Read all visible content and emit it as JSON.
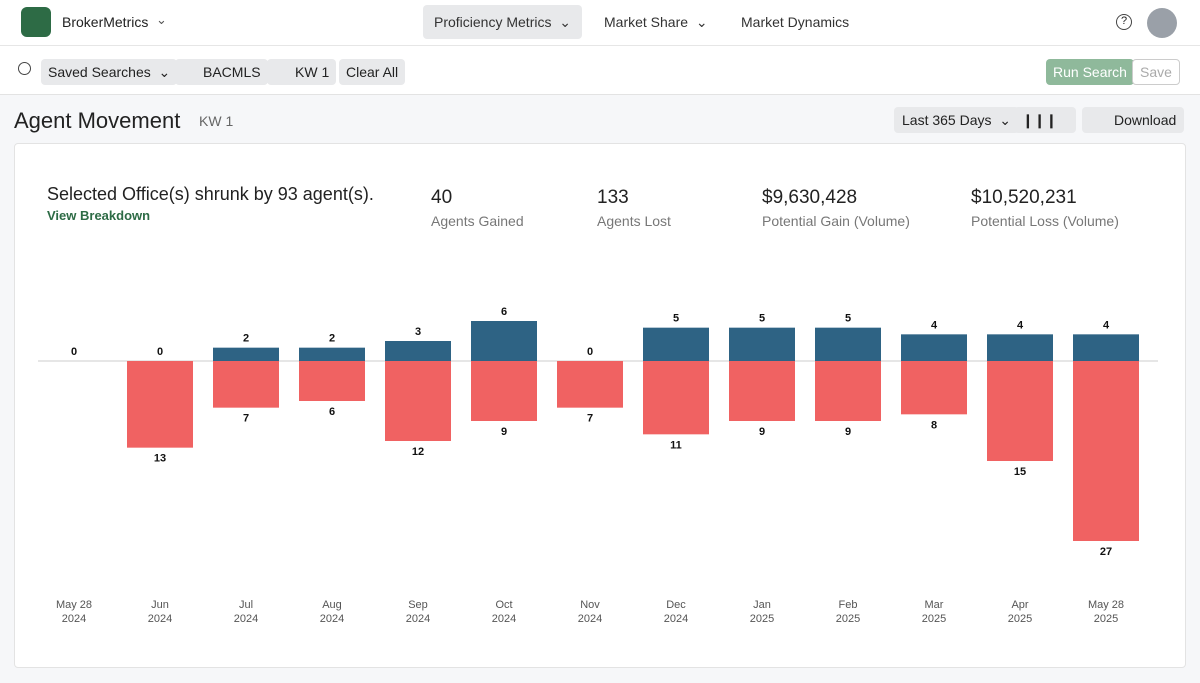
{
  "nav": {
    "brand": "BrokerMetrics",
    "tabs": [
      "Proficiency Metrics",
      "Market Share",
      "Market Dynamics"
    ]
  },
  "toolbar": {
    "saved": "Saved Searches",
    "chips": [
      "BACMLS",
      "KW 1"
    ],
    "clear": "Clear All",
    "run": "Run Search",
    "save": "Save"
  },
  "header": {
    "title": "Agent Movement",
    "subtitle": "KW 1",
    "range": "Last 365 Days",
    "download": "Download"
  },
  "summary": {
    "text": "Selected Office(s) shrunk by 93 agent(s).",
    "link": "View Breakdown"
  },
  "stats": [
    {
      "value": "40",
      "label": "Agents Gained"
    },
    {
      "value": "133",
      "label": "Agents Lost"
    },
    {
      "value": "$9,630,428",
      "label": "Potential Gain (Volume)"
    },
    {
      "value": "$10,520,231",
      "label": "Potential Loss (Volume)"
    }
  ],
  "chart_data": {
    "type": "bar",
    "categories": [
      "May 28\n2024",
      "Jun\n2024",
      "Jul\n2024",
      "Aug\n2024",
      "Sep\n2024",
      "Oct\n2024",
      "Nov\n2024",
      "Dec\n2024",
      "Jan\n2025",
      "Feb\n2025",
      "Mar\n2025",
      "Apr\n2025",
      "May 28\n2025"
    ],
    "series": [
      {
        "color": "#2e6384",
        "values": [
          0,
          0,
          2,
          2,
          3,
          6,
          0,
          5,
          5,
          5,
          4,
          4,
          4
        ]
      },
      {
        "color": "#f06262",
        "values": [
          null,
          -13,
          -7,
          -6,
          -12,
          -9,
          -7,
          -11,
          -9,
          -9,
          -8,
          -15,
          -27
        ],
        "value_labels": [
          null,
          "13",
          "7",
          "6",
          "12",
          "9",
          "7",
          "11",
          "9",
          "9",
          "8",
          "15",
          "27"
        ]
      }
    ]
  }
}
